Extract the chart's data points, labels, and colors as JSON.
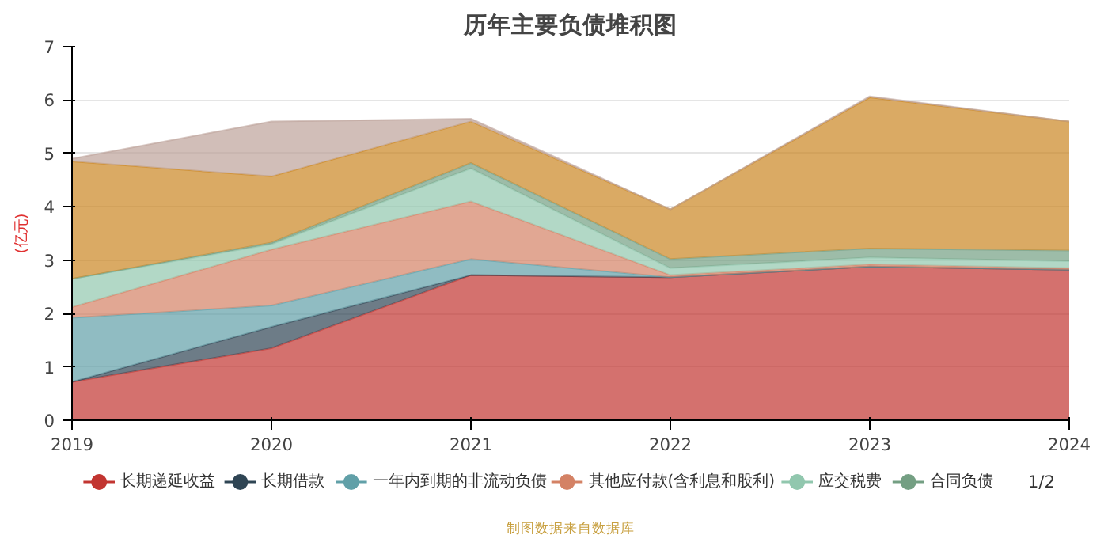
{
  "chart_data": {
    "type": "area",
    "stacked": true,
    "title": "历年主要负债堆积图",
    "ylabel": "(亿元)",
    "x": [
      2019,
      2020,
      2021,
      2022,
      2023,
      2024
    ],
    "xlim": [
      2019,
      2024
    ],
    "xticks": [
      2019,
      2020,
      2021,
      2022,
      2023,
      2024
    ],
    "ylim": [
      0,
      7
    ],
    "yticks": [
      0,
      1,
      2,
      3,
      4,
      5,
      6,
      7
    ],
    "grid": "y",
    "legend": "bottom",
    "series": [
      {
        "name": "长期递延收益",
        "color": "#c23531",
        "values": [
          0.72,
          1.35,
          2.72,
          2.68,
          2.88,
          2.82
        ]
      },
      {
        "name": "长期借款",
        "color": "#2f4554",
        "values": [
          0,
          0.4,
          0,
          0,
          0,
          0
        ]
      },
      {
        "name": "一年内到期的非流动负债",
        "color": "#61a0a8",
        "values": [
          1.2,
          0.4,
          0.3,
          0,
          0,
          0
        ]
      },
      {
        "name": "其他应付款(含利息和股利)",
        "color": "#d48265",
        "values": [
          0.2,
          1.05,
          1.08,
          0.04,
          0.04,
          0.03
        ]
      },
      {
        "name": "应交税费",
        "color": "#91c7ae",
        "values": [
          0.53,
          0.1,
          0.62,
          0.13,
          0.13,
          0.13
        ]
      },
      {
        "name": "合同负债",
        "color": "#749f83",
        "values": [
          0,
          0.03,
          0.1,
          0.17,
          0.17,
          0.2
        ]
      },
      {
        "color": "#ca8622",
        "values": [
          2.2,
          1.24,
          0.78,
          0.93,
          2.83,
          2.42
        ]
      },
      {
        "color": "#bda29a",
        "values": [
          0.05,
          1.03,
          0.05,
          0,
          0.02,
          0
        ]
      }
    ],
    "annotations": [
      "1/2",
      "制图数据来自数据库"
    ]
  }
}
